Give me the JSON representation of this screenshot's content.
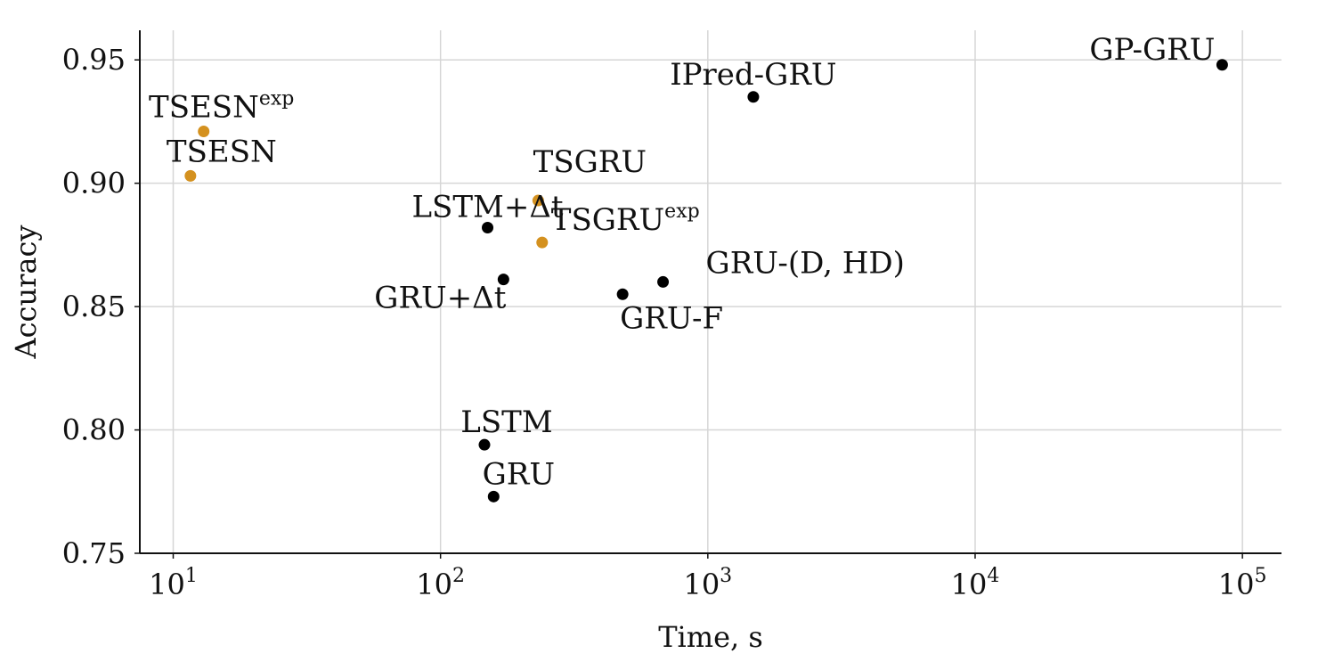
{
  "chart_data": {
    "type": "scatter",
    "title": "",
    "xlabel": "Time, s",
    "ylabel": "Accuracy",
    "x_scale": "log",
    "xlim": [
      7.5,
      140000
    ],
    "ylim": [
      0.75,
      0.962
    ],
    "grid": true,
    "legend": "none",
    "x_ticks": [
      {
        "value": 10,
        "base": "10",
        "exp": "1"
      },
      {
        "value": 100,
        "base": "10",
        "exp": "2"
      },
      {
        "value": 1000,
        "base": "10",
        "exp": "3"
      },
      {
        "value": 10000,
        "base": "10",
        "exp": "4"
      },
      {
        "value": 100000,
        "base": "10",
        "exp": "5"
      }
    ],
    "y_ticks": [
      {
        "value": 0.75,
        "label": "0.75"
      },
      {
        "value": 0.8,
        "label": "0.80"
      },
      {
        "value": 0.85,
        "label": "0.85"
      },
      {
        "value": 0.9,
        "label": "0.90"
      },
      {
        "value": 0.95,
        "label": "0.95"
      }
    ],
    "colors": {
      "baseline": "#000000",
      "proposed": "#d4911f",
      "grid": "#d6d6d6",
      "axis": "#111111"
    },
    "points": [
      {
        "label": "GP-GRU",
        "sup": "",
        "x": 84000,
        "y": 0.948,
        "group": "baseline",
        "anchor": "end",
        "dx": -8,
        "dy": -6
      },
      {
        "label": "IPred-GRU",
        "sup": "",
        "x": 1480,
        "y": 0.935,
        "group": "baseline",
        "anchor": "middle",
        "dx": 0,
        "dy": -14
      },
      {
        "label": "TSESN",
        "sup": "exp",
        "x": 13,
        "y": 0.921,
        "group": "proposed",
        "anchor": "middle",
        "dx": 20,
        "dy": -16
      },
      {
        "label": "TSESN",
        "sup": "",
        "x": 11.6,
        "y": 0.903,
        "group": "proposed",
        "anchor": "middle",
        "dx": 35,
        "dy": -16
      },
      {
        "label": "TSGRU",
        "sup": "",
        "x": 232,
        "y": 0.893,
        "group": "proposed",
        "anchor": "middle",
        "dx": 58,
        "dy": -32
      },
      {
        "label": "LSTM+Δt",
        "sup": "",
        "x": 150,
        "y": 0.882,
        "group": "baseline",
        "anchor": "middle",
        "dx": 0,
        "dy": -12
      },
      {
        "label": "TSGRU",
        "sup": "exp",
        "x": 240,
        "y": 0.876,
        "group": "proposed",
        "anchor": "start",
        "dx": 10,
        "dy": -14
      },
      {
        "label": "GRU+Δt",
        "sup": "",
        "x": 172,
        "y": 0.861,
        "group": "baseline",
        "anchor": "middle",
        "dx": -71,
        "dy": 32
      },
      {
        "label": "GRU-(D, HD)",
        "sup": "",
        "x": 680,
        "y": 0.86,
        "group": "baseline",
        "anchor": "start",
        "dx": 48,
        "dy": -10
      },
      {
        "label": "GRU-F",
        "sup": "",
        "x": 480,
        "y": 0.855,
        "group": "baseline",
        "anchor": "start",
        "dx": -3,
        "dy": 38
      },
      {
        "label": "LSTM",
        "sup": "",
        "x": 146,
        "y": 0.794,
        "group": "baseline",
        "anchor": "middle",
        "dx": 25,
        "dy": -14
      },
      {
        "label": "GRU",
        "sup": "",
        "x": 158,
        "y": 0.773,
        "group": "baseline",
        "anchor": "middle",
        "dx": 28,
        "dy": -14
      }
    ]
  }
}
